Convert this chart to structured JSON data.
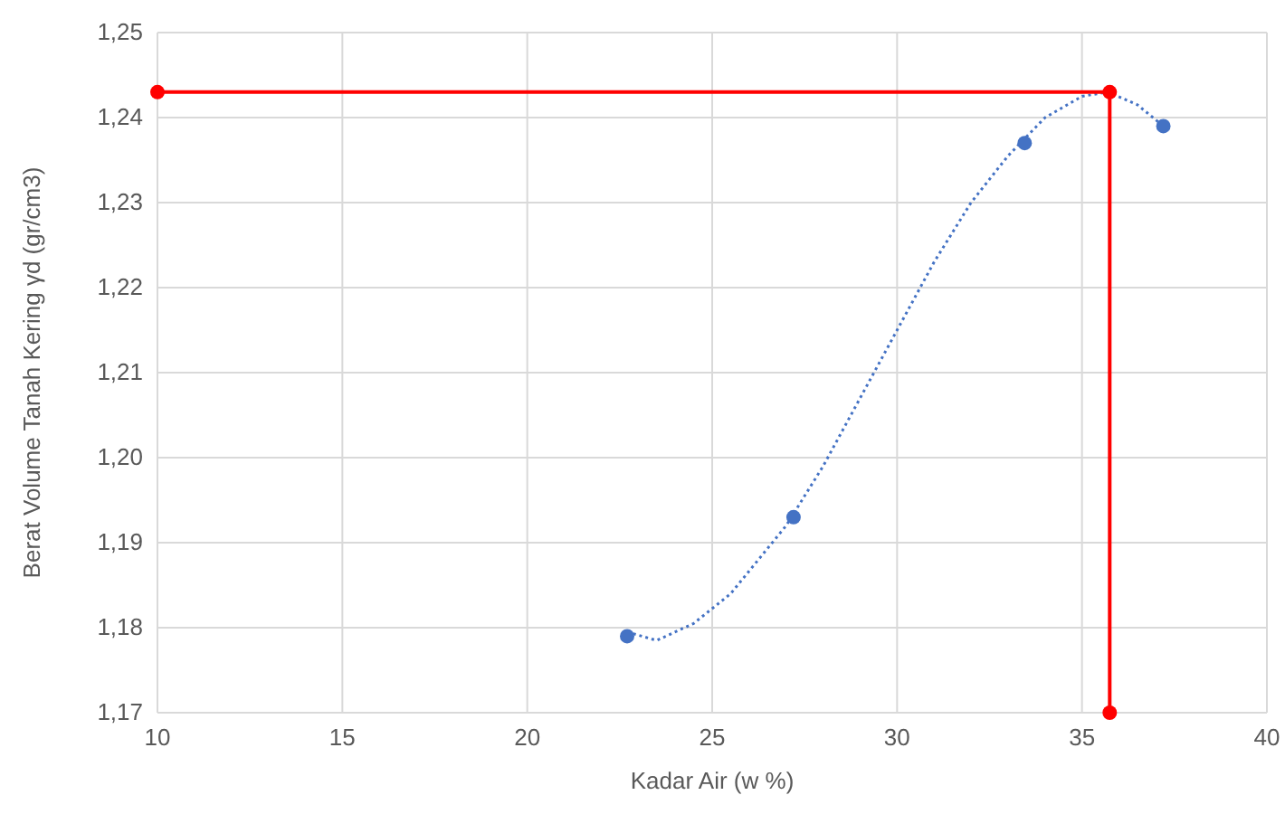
{
  "chart_data": {
    "type": "scatter",
    "xlabel": "Kadar Air (w %)",
    "ylabel": "Berat Volume Tanah Kering γd (gr/cm3)",
    "xlim": [
      10,
      40
    ],
    "xticks": [
      10,
      15,
      20,
      25,
      30,
      35,
      40
    ],
    "ylim": [
      1.17,
      1.25
    ],
    "yticks": [
      {
        "value": 1.17,
        "label": "1,17"
      },
      {
        "value": 1.18,
        "label": "1,18"
      },
      {
        "value": 1.19,
        "label": "1,19"
      },
      {
        "value": 1.2,
        "label": "1,20"
      },
      {
        "value": 1.21,
        "label": "1,21"
      },
      {
        "value": 1.22,
        "label": "1,22"
      },
      {
        "value": 1.23,
        "label": "1,23"
      },
      {
        "value": 1.24,
        "label": "1,24"
      },
      {
        "value": 1.25,
        "label": "1,25"
      }
    ],
    "grid": true,
    "series": [
      {
        "type": "line",
        "color": "#4472c4",
        "line_style": "dotted",
        "marker": "none",
        "x": [
          22.7,
          23.5,
          24.5,
          25.5,
          27,
          28,
          29,
          30,
          31,
          32,
          33,
          34,
          35,
          35.7,
          36.5,
          37.2
        ],
        "values": [
          1.1795,
          1.1785,
          1.1805,
          1.184,
          1.192,
          1.199,
          1.207,
          1.215,
          1.223,
          1.23,
          1.2355,
          1.24,
          1.2425,
          1.243,
          1.2415,
          1.239
        ]
      },
      {
        "color": "#4472c4",
        "marker": "circle",
        "x": [
          22.7,
          27.2,
          33.45,
          37.2
        ],
        "values": [
          1.179,
          1.193,
          1.237,
          1.239
        ]
      },
      {
        "type": "line",
        "color": "#ff0000",
        "line_style": "solid",
        "marker": "circle",
        "x": [
          10,
          35.75,
          35.75
        ],
        "values": [
          1.243,
          1.243,
          1.17
        ]
      }
    ]
  }
}
